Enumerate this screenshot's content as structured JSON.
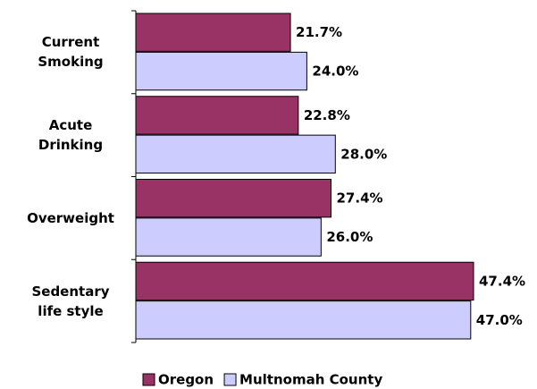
{
  "chart_data": {
    "type": "bar",
    "orientation": "horizontal",
    "categories": [
      "Current Smoking",
      "Acute Drinking",
      "Overweight",
      "Sedentary life style"
    ],
    "series": [
      {
        "name": "Oregon",
        "color": "#993366",
        "values": [
          21.7,
          22.8,
          27.4,
          47.4
        ],
        "value_labels": [
          "21.7%",
          "22.8%",
          "27.4%",
          "47.4%"
        ]
      },
      {
        "name": "Multnomah County",
        "color": "#ccccff",
        "values": [
          24.0,
          28.0,
          26.0,
          47.0
        ],
        "value_labels": [
          "24.0%",
          "28.0%",
          "26.0%",
          "47.0%"
        ]
      }
    ],
    "legend": "bottom"
  }
}
